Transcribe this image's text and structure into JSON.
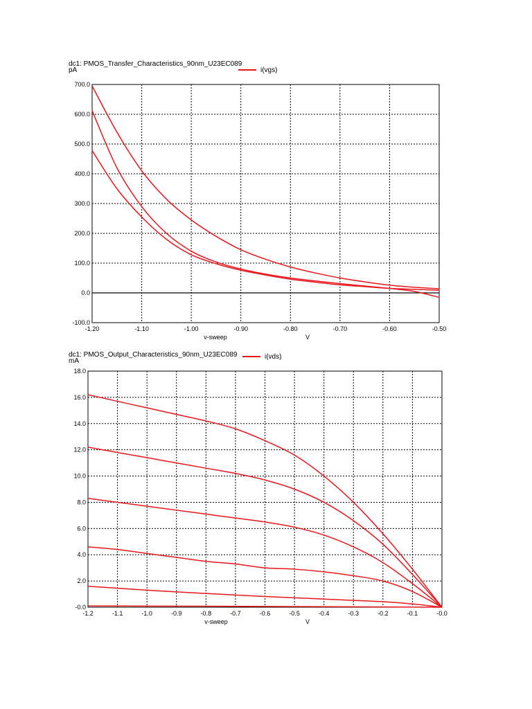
{
  "colors": {
    "trace": "#e8161b",
    "grid": "#000000",
    "zero_line": "#000000"
  },
  "chart_data": [
    {
      "type": "line",
      "title": "dc1: PMOS_Transfer_Characteristics_90nm_U23EC089",
      "unit": "pA",
      "xlabel": "v-sweep",
      "xunit": "V",
      "legend": "i(vgs)",
      "legend_position": "top-center",
      "grid": true,
      "xlim": [
        -1.2,
        -0.5
      ],
      "ylim": [
        -100,
        700
      ],
      "x_ticks": [
        -1.2,
        -1.1,
        -1.0,
        -0.9,
        -0.8,
        -0.7,
        -0.6,
        -0.5
      ],
      "x_tick_labels": [
        "-1.20",
        "-1.10",
        "-1.00",
        "-0.90",
        "-0.80",
        "-0.70",
        "-0.60",
        "-0.50"
      ],
      "y_ticks": [
        -100,
        0,
        100,
        200,
        300,
        400,
        500,
        600,
        700
      ],
      "y_tick_labels": [
        "-100.0",
        "0.0",
        "100.0",
        "200.0",
        "300.0",
        "400.0",
        "500.0",
        "600.0",
        "700.0"
      ],
      "series": [
        {
          "x": [
            -1.2,
            -1.15,
            -1.1,
            -1.05,
            -1.0,
            -0.95,
            -0.9,
            -0.85,
            -0.8,
            -0.75,
            -0.7,
            -0.65,
            -0.6,
            -0.55,
            -0.5
          ],
          "values": [
            695,
            540,
            410,
            315,
            245,
            190,
            145,
            113,
            87,
            67,
            50,
            37,
            26,
            19,
            14
          ]
        },
        {
          "x": [
            -1.2,
            -1.15,
            -1.1,
            -1.05,
            -1.0,
            -0.95,
            -0.9,
            -0.85,
            -0.8,
            -0.75,
            -0.7,
            -0.65,
            -0.6,
            -0.55,
            -0.5
          ],
          "values": [
            612,
            420,
            290,
            200,
            140,
            104,
            80,
            63,
            50,
            40,
            31,
            23,
            15,
            5,
            -15
          ]
        },
        {
          "x": [
            -1.2,
            -1.15,
            -1.1,
            -1.05,
            -1.0,
            -0.95,
            -0.9,
            -0.85,
            -0.8,
            -0.75,
            -0.7,
            -0.65,
            -0.6,
            -0.55,
            -0.5
          ],
          "values": [
            478,
            350,
            255,
            180,
            128,
            98,
            76,
            60,
            46,
            36,
            27,
            21,
            15,
            12,
            9
          ]
        }
      ]
    },
    {
      "type": "line",
      "title": "dc1: PMOS_Output_Characteristics_90nm_U23EC089",
      "unit": "mA",
      "xlabel": "v-sweep",
      "xunit": "V",
      "legend": "i(vds)",
      "legend_position": "top-center",
      "grid": true,
      "xlim": [
        -1.2,
        0.0
      ],
      "ylim": [
        0,
        18
      ],
      "x_ticks": [
        -1.2,
        -1.1,
        -1.0,
        -0.9,
        -0.8,
        -0.7,
        -0.6,
        -0.5,
        -0.4,
        -0.3,
        -0.2,
        -0.1,
        0.0
      ],
      "x_tick_labels": [
        "-1.2",
        "-1.1",
        "-1.0",
        "-0.9",
        "-0.8",
        "-0.7",
        "-0.6",
        "-0.5",
        "-0.4",
        "-0.3",
        "-0.2",
        "-0.1",
        "-0.0"
      ],
      "y_ticks": [
        0,
        2,
        4,
        6,
        8,
        10,
        12,
        14,
        16,
        18
      ],
      "y_tick_labels": [
        "-0.0",
        "2.0",
        "4.0",
        "6.0",
        "8.0",
        "10.0",
        "12.0",
        "14.0",
        "16.0",
        "18.0"
      ],
      "series": [
        {
          "x": [
            -1.2,
            -1.1,
            -1.0,
            -0.9,
            -0.8,
            -0.7,
            -0.6,
            -0.5,
            -0.4,
            -0.3,
            -0.2,
            -0.1,
            0.0
          ],
          "values": [
            16.2,
            15.7,
            15.2,
            14.7,
            14.2,
            13.6,
            12.7,
            11.6,
            10.0,
            8.0,
            5.6,
            2.9,
            0.0
          ]
        },
        {
          "x": [
            -1.2,
            -1.1,
            -1.0,
            -0.9,
            -0.8,
            -0.7,
            -0.6,
            -0.5,
            -0.4,
            -0.3,
            -0.2,
            -0.1,
            0.0
          ],
          "values": [
            12.2,
            11.8,
            11.4,
            11.0,
            10.6,
            10.2,
            9.7,
            9.0,
            8.0,
            6.6,
            4.8,
            2.5,
            0.0
          ]
        },
        {
          "x": [
            -1.2,
            -1.1,
            -1.0,
            -0.9,
            -0.8,
            -0.7,
            -0.6,
            -0.5,
            -0.4,
            -0.3,
            -0.2,
            -0.1,
            0.0
          ],
          "values": [
            8.3,
            8.0,
            7.7,
            7.4,
            7.1,
            6.8,
            6.5,
            6.1,
            5.5,
            4.6,
            3.4,
            1.8,
            0.0
          ]
        },
        {
          "x": [
            -1.2,
            -1.1,
            -1.0,
            -0.9,
            -0.8,
            -0.7,
            -0.6,
            -0.5,
            -0.4,
            -0.3,
            -0.2,
            -0.1,
            0.0
          ],
          "values": [
            4.6,
            4.4,
            4.1,
            3.8,
            3.5,
            3.3,
            3.0,
            2.9,
            2.7,
            2.4,
            2.0,
            1.2,
            0.0
          ]
        },
        {
          "x": [
            -1.2,
            -1.1,
            -1.0,
            -0.9,
            -0.8,
            -0.7,
            -0.6,
            -0.5,
            -0.4,
            -0.3,
            -0.2,
            -0.1,
            0.0
          ],
          "values": [
            1.6,
            1.45,
            1.3,
            1.17,
            1.05,
            0.93,
            0.82,
            0.72,
            0.62,
            0.52,
            0.42,
            0.25,
            0.0
          ]
        },
        {
          "x": [
            -1.2,
            -0.6,
            0.0
          ],
          "values": [
            0.1,
            0.06,
            0.0
          ]
        }
      ]
    }
  ]
}
